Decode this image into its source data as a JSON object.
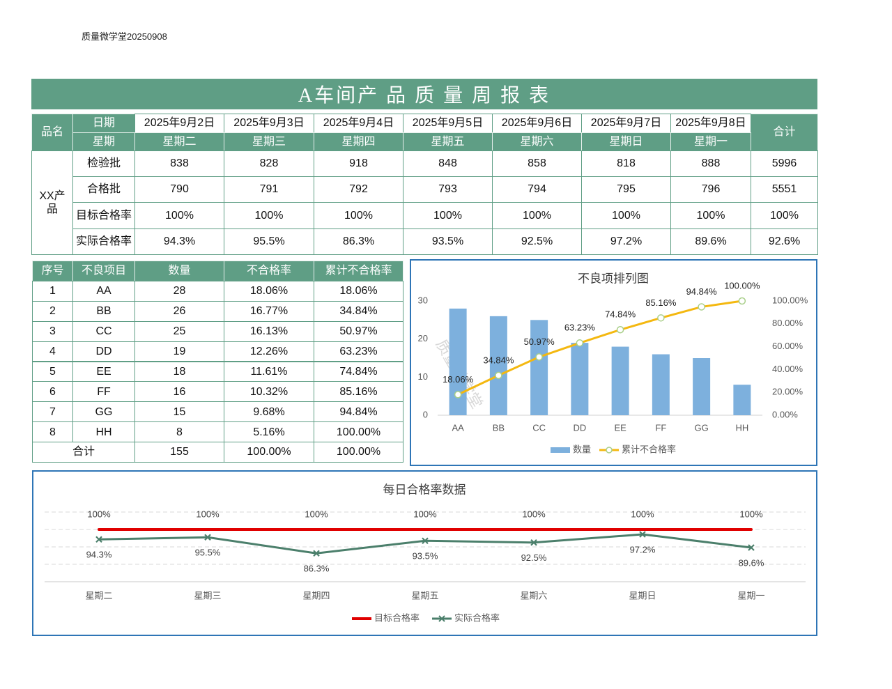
{
  "header": {
    "note": "质量微学堂20250908",
    "title": "A车间产 品 质 量 周 报 表",
    "watermark": "质量微学堂"
  },
  "weekly_table": {
    "product_label": "品名",
    "date_label": "日期",
    "weekday_label": "星期",
    "total_label": "合计",
    "dates": [
      "2025年9月2日",
      "2025年9月3日",
      "2025年9月4日",
      "2025年9月5日",
      "2025年9月6日",
      "2025年9月7日",
      "2025年9月8日"
    ],
    "weekdays": [
      "星期二",
      "星期三",
      "星期四",
      "星期五",
      "星期六",
      "星期日",
      "星期一"
    ],
    "product": "XX产品",
    "rows": [
      {
        "label": "检验批",
        "values": [
          "838",
          "828",
          "918",
          "848",
          "858",
          "818",
          "888"
        ],
        "total": "5996"
      },
      {
        "label": "合格批",
        "values": [
          "790",
          "791",
          "792",
          "793",
          "794",
          "795",
          "796"
        ],
        "total": "5551"
      },
      {
        "label": "目标合格率",
        "values": [
          "100%",
          "100%",
          "100%",
          "100%",
          "100%",
          "100%",
          "100%"
        ],
        "total": "100%"
      },
      {
        "label": "实际合格率",
        "values": [
          "94.3%",
          "95.5%",
          "86.3%",
          "93.5%",
          "92.5%",
          "97.2%",
          "89.6%"
        ],
        "total": "92.6%"
      }
    ]
  },
  "defect_table": {
    "headers": [
      "序号",
      "不良项目",
      "数量",
      "不合格率",
      "累计不合格率"
    ],
    "rows": [
      [
        "1",
        "AA",
        "28",
        "18.06%",
        "18.06%"
      ],
      [
        "2",
        "BB",
        "26",
        "16.77%",
        "34.84%"
      ],
      [
        "3",
        "CC",
        "25",
        "16.13%",
        "50.97%"
      ],
      [
        "4",
        "DD",
        "19",
        "12.26%",
        "63.23%"
      ],
      [
        "5",
        "EE",
        "18",
        "11.61%",
        "74.84%"
      ],
      [
        "6",
        "FF",
        "16",
        "10.32%",
        "85.16%"
      ],
      [
        "7",
        "GG",
        "15",
        "9.68%",
        "94.84%"
      ],
      [
        "8",
        "HH",
        "8",
        "5.16%",
        "100.00%"
      ]
    ],
    "total_row": [
      "合计",
      "155",
      "100.00%",
      "100.00%"
    ]
  },
  "chart_data": [
    {
      "type": "pareto",
      "title": "不良项排列图",
      "categories": [
        "AA",
        "BB",
        "CC",
        "DD",
        "EE",
        "FF",
        "GG",
        "HH"
      ],
      "series": [
        {
          "name": "数量",
          "type": "bar",
          "color": "#7db0dd",
          "values": [
            28,
            26,
            25,
            19,
            18,
            16,
            15,
            8
          ]
        },
        {
          "name": "累计不合格率",
          "type": "line",
          "axis": "y2",
          "color": "#f4b810",
          "marker_color": "#a9cf8a",
          "values": [
            18.06,
            34.84,
            50.97,
            63.23,
            74.84,
            85.16,
            94.84,
            100
          ],
          "value_labels": [
            "18.06%",
            "34.84%",
            "50.97%",
            "63.23%",
            "74.84%",
            "85.16%",
            "94.84%",
            "100.00%"
          ]
        }
      ],
      "ylim": [
        0,
        30
      ],
      "yticks": [
        0,
        10,
        20,
        30
      ],
      "y2lim": [
        0,
        100
      ],
      "y2ticks": [
        {
          "value": 0,
          "label": "0.00%"
        },
        {
          "value": 20,
          "label": "20.00%"
        },
        {
          "value": 40,
          "label": "40.00%"
        },
        {
          "value": 60,
          "label": "60.00%"
        },
        {
          "value": 80,
          "label": "80.00%"
        },
        {
          "value": 100,
          "label": "100.00%"
        }
      ],
      "legend": "bottom"
    },
    {
      "type": "line",
      "title": "每日合格率数据",
      "categories": [
        "星期二",
        "星期三",
        "星期四",
        "星期五",
        "星期六",
        "星期日",
        "星期一"
      ],
      "series": [
        {
          "name": "目标合格率",
          "color": "#e00000",
          "marker": "none",
          "label_position": "above",
          "values": [
            100,
            100,
            100,
            100,
            100,
            100,
            100
          ],
          "value_labels": [
            "100%",
            "100%",
            "100%",
            "100%",
            "100%",
            "100%",
            "100%"
          ]
        },
        {
          "name": "实际合格率",
          "color": "#4b7f6b",
          "marker": "x",
          "label_position": "below",
          "values": [
            94.3,
            95.5,
            86.3,
            93.5,
            92.5,
            97.2,
            89.6
          ],
          "value_labels": [
            "94.3%",
            "95.5%",
            "86.3%",
            "93.5%",
            "92.5%",
            "97.2%",
            "89.6%"
          ]
        }
      ],
      "ylim": [
        70,
        110
      ],
      "yticks": [
        70,
        80,
        90,
        100,
        110
      ],
      "show_ytick_labels": false,
      "grid": true,
      "legend": "bottom"
    }
  ]
}
